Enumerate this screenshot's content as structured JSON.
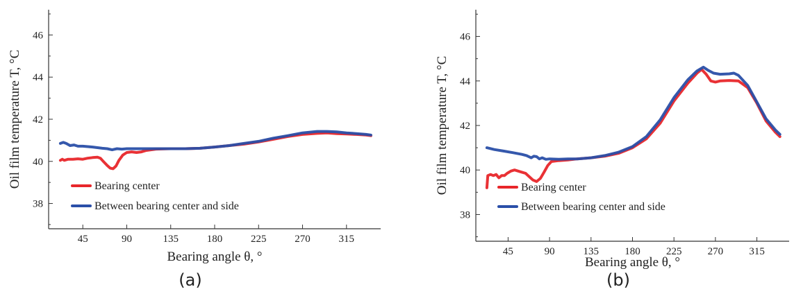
{
  "chart_data": [
    {
      "type": "line",
      "panel_label": "(a)",
      "xlabel": "Bearing angle θ, °",
      "ylabel": "Oil film temperature T, °C",
      "xticks": [
        45,
        90,
        135,
        180,
        225,
        270,
        315
      ],
      "yticks": [
        38,
        40,
        42,
        44,
        46
      ],
      "xlim": [
        10,
        350
      ],
      "ylim": [
        36.8,
        47.2
      ],
      "grid": false,
      "legend_position": "bottom-left",
      "series": [
        {
          "name": "Bearing center",
          "color": "#e8262a",
          "points": [
            [
              22,
              40.05
            ],
            [
              24,
              40.1
            ],
            [
              26,
              40.05
            ],
            [
              30,
              40.1
            ],
            [
              35,
              40.1
            ],
            [
              40,
              40.12
            ],
            [
              45,
              40.1
            ],
            [
              50,
              40.15
            ],
            [
              55,
              40.18
            ],
            [
              60,
              40.2
            ],
            [
              63,
              40.15
            ],
            [
              66,
              40.0
            ],
            [
              70,
              39.8
            ],
            [
              73,
              39.68
            ],
            [
              76,
              39.65
            ],
            [
              79,
              39.78
            ],
            [
              82,
              40.05
            ],
            [
              86,
              40.3
            ],
            [
              90,
              40.42
            ],
            [
              95,
              40.45
            ],
            [
              100,
              40.42
            ],
            [
              105,
              40.45
            ],
            [
              110,
              40.52
            ],
            [
              120,
              40.58
            ],
            [
              135,
              40.6
            ],
            [
              150,
              40.6
            ],
            [
              165,
              40.62
            ],
            [
              180,
              40.68
            ],
            [
              195,
              40.75
            ],
            [
              210,
              40.82
            ],
            [
              225,
              40.92
            ],
            [
              240,
              41.05
            ],
            [
              255,
              41.18
            ],
            [
              270,
              41.28
            ],
            [
              285,
              41.33
            ],
            [
              295,
              41.35
            ],
            [
              305,
              41.32
            ],
            [
              315,
              41.3
            ],
            [
              325,
              41.28
            ],
            [
              335,
              41.25
            ],
            [
              340,
              41.22
            ]
          ]
        },
        {
          "name": "Between bearing center and side",
          "color": "#2a4fa8",
          "points": [
            [
              22,
              40.85
            ],
            [
              25,
              40.9
            ],
            [
              28,
              40.85
            ],
            [
              32,
              40.75
            ],
            [
              36,
              40.78
            ],
            [
              40,
              40.72
            ],
            [
              45,
              40.72
            ],
            [
              50,
              40.7
            ],
            [
              55,
              40.68
            ],
            [
              60,
              40.65
            ],
            [
              65,
              40.62
            ],
            [
              70,
              40.6
            ],
            [
              75,
              40.55
            ],
            [
              80,
              40.6
            ],
            [
              85,
              40.58
            ],
            [
              90,
              40.6
            ],
            [
              100,
              40.6
            ],
            [
              110,
              40.6
            ],
            [
              120,
              40.6
            ],
            [
              135,
              40.6
            ],
            [
              150,
              40.6
            ],
            [
              165,
              40.62
            ],
            [
              180,
              40.68
            ],
            [
              195,
              40.75
            ],
            [
              210,
              40.85
            ],
            [
              225,
              40.95
            ],
            [
              240,
              41.1
            ],
            [
              255,
              41.22
            ],
            [
              270,
              41.35
            ],
            [
              285,
              41.42
            ],
            [
              295,
              41.42
            ],
            [
              305,
              41.4
            ],
            [
              315,
              41.35
            ],
            [
              325,
              41.32
            ],
            [
              335,
              41.28
            ],
            [
              340,
              41.25
            ]
          ]
        }
      ]
    },
    {
      "type": "line",
      "panel_label": "(b)",
      "xlabel": "Bearing angle θ, °",
      "ylabel": "Oil film temperature T, °C",
      "xticks": [
        45,
        90,
        135,
        180,
        225,
        270,
        315
      ],
      "yticks": [
        38,
        40,
        42,
        44,
        46
      ],
      "xlim": [
        10,
        350
      ],
      "ylim": [
        36.8,
        47.2
      ],
      "grid": false,
      "legend_position": "bottom-left",
      "series": [
        {
          "name": "Bearing center",
          "color": "#e8262a",
          "points": [
            [
              22,
              39.2
            ],
            [
              23,
              39.75
            ],
            [
              26,
              39.8
            ],
            [
              29,
              39.75
            ],
            [
              32,
              39.8
            ],
            [
              35,
              39.65
            ],
            [
              38,
              39.75
            ],
            [
              41,
              39.75
            ],
            [
              44,
              39.85
            ],
            [
              48,
              39.95
            ],
            [
              52,
              40.0
            ],
            [
              56,
              39.95
            ],
            [
              60,
              39.9
            ],
            [
              64,
              39.85
            ],
            [
              68,
              39.7
            ],
            [
              72,
              39.55
            ],
            [
              76,
              39.48
            ],
            [
              80,
              39.62
            ],
            [
              84,
              39.9
            ],
            [
              88,
              40.2
            ],
            [
              92,
              40.38
            ],
            [
              100,
              40.42
            ],
            [
              110,
              40.45
            ],
            [
              120,
              40.5
            ],
            [
              135,
              40.55
            ],
            [
              150,
              40.62
            ],
            [
              165,
              40.75
            ],
            [
              180,
              41.0
            ],
            [
              195,
              41.4
            ],
            [
              210,
              42.1
            ],
            [
              225,
              43.1
            ],
            [
              240,
              43.9
            ],
            [
              250,
              44.35
            ],
            [
              255,
              44.52
            ],
            [
              260,
              44.3
            ],
            [
              265,
              44.0
            ],
            [
              270,
              43.95
            ],
            [
              275,
              44.0
            ],
            [
              285,
              44.02
            ],
            [
              295,
              44.0
            ],
            [
              305,
              43.7
            ],
            [
              315,
              43.0
            ],
            [
              325,
              42.2
            ],
            [
              335,
              41.7
            ],
            [
              340,
              41.5
            ]
          ]
        },
        {
          "name": "Between bearing center and side",
          "color": "#2a4fa8",
          "points": [
            [
              22,
              41.0
            ],
            [
              30,
              40.92
            ],
            [
              40,
              40.85
            ],
            [
              50,
              40.78
            ],
            [
              60,
              40.7
            ],
            [
              65,
              40.65
            ],
            [
              70,
              40.55
            ],
            [
              73,
              40.62
            ],
            [
              76,
              40.6
            ],
            [
              79,
              40.5
            ],
            [
              82,
              40.55
            ],
            [
              86,
              40.48
            ],
            [
              90,
              40.5
            ],
            [
              100,
              40.48
            ],
            [
              110,
              40.5
            ],
            [
              120,
              40.5
            ],
            [
              135,
              40.55
            ],
            [
              150,
              40.65
            ],
            [
              165,
              40.8
            ],
            [
              180,
              41.05
            ],
            [
              195,
              41.5
            ],
            [
              210,
              42.25
            ],
            [
              225,
              43.25
            ],
            [
              240,
              44.05
            ],
            [
              250,
              44.45
            ],
            [
              257,
              44.62
            ],
            [
              262,
              44.48
            ],
            [
              268,
              44.35
            ],
            [
              275,
              44.3
            ],
            [
              285,
              44.32
            ],
            [
              290,
              44.35
            ],
            [
              295,
              44.25
            ],
            [
              305,
              43.8
            ],
            [
              315,
              43.05
            ],
            [
              325,
              42.3
            ],
            [
              335,
              41.8
            ],
            [
              340,
              41.6
            ]
          ]
        }
      ]
    }
  ]
}
